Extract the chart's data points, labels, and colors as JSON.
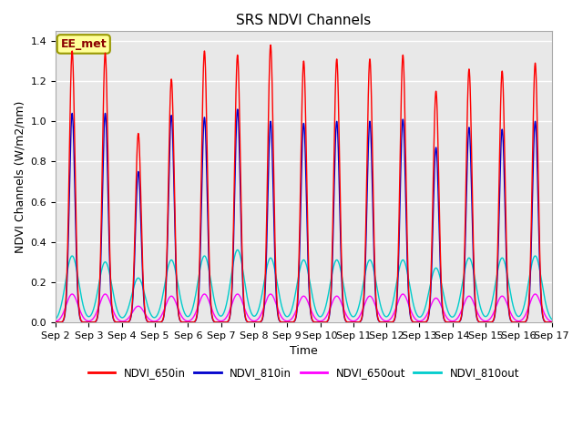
{
  "title": "SRS NDVI Channels",
  "ylabel": "NDVI Channels (W/m2/nm)",
  "xlabel": "Time",
  "annotation": "EE_met",
  "ylim": [
    0,
    1.45
  ],
  "line_colors": {
    "NDVI_650in": "#ff0000",
    "NDVI_810in": "#0000cc",
    "NDVI_650out": "#ff00ff",
    "NDVI_810out": "#00cccc"
  },
  "line_widths": {
    "NDVI_650in": 1.0,
    "NDVI_810in": 1.0,
    "NDVI_650out": 1.0,
    "NDVI_810out": 1.0
  },
  "start_day": 2,
  "end_day": 17,
  "peaks_650in": [
    1.35,
    1.34,
    0.94,
    1.21,
    1.35,
    1.33,
    1.38,
    1.3,
    1.31,
    1.31,
    1.33,
    1.15,
    1.26,
    1.25,
    1.29
  ],
  "peaks_810in": [
    1.04,
    1.04,
    0.75,
    1.03,
    1.02,
    1.06,
    1.0,
    0.99,
    1.0,
    1.0,
    1.01,
    0.87,
    0.97,
    0.96,
    1.0
  ],
  "peaks_650out": [
    0.14,
    0.14,
    0.08,
    0.13,
    0.14,
    0.14,
    0.14,
    0.13,
    0.13,
    0.13,
    0.14,
    0.12,
    0.13,
    0.13,
    0.14
  ],
  "peaks_810out": [
    0.33,
    0.3,
    0.22,
    0.31,
    0.33,
    0.36,
    0.32,
    0.31,
    0.31,
    0.31,
    0.31,
    0.27,
    0.32,
    0.32,
    0.33
  ],
  "background_color": "#ffffff",
  "plot_bg_color": "#e8e8e8",
  "grid_color": "#ffffff",
  "title_fontsize": 11,
  "label_fontsize": 9,
  "tick_fontsize": 8
}
